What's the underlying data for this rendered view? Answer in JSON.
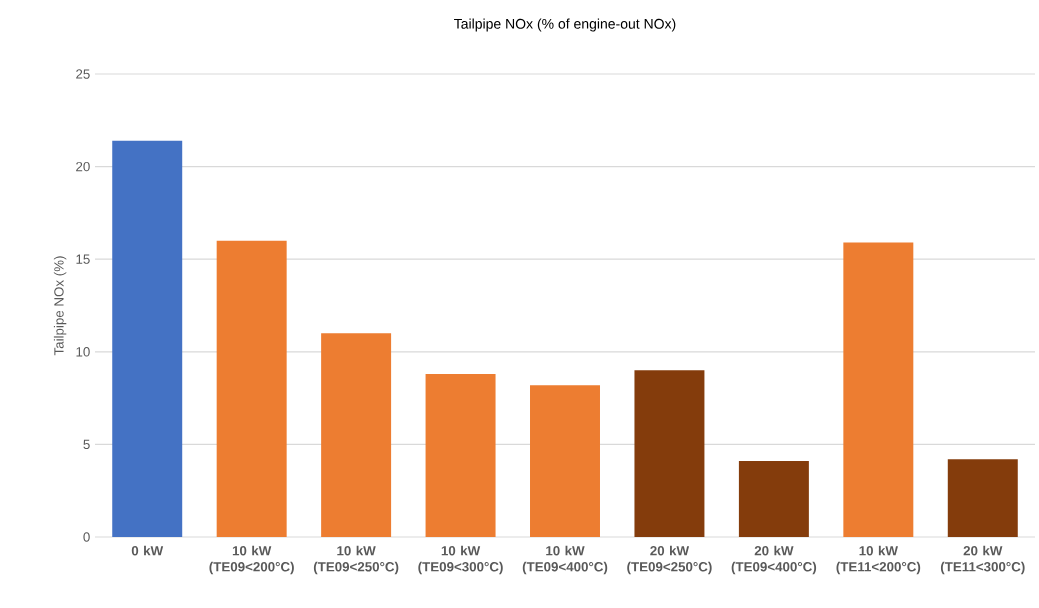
{
  "chart_data": {
    "type": "bar",
    "title": "Tailpipe NOx (% of engine-out NOx)",
    "ylabel": "Tailpipe NOx (%)",
    "categories": [
      "0 kW",
      "10 kW (TE09<200°C)",
      "10 kW (TE09<250°C)",
      "10 kW (TE09<300°C)",
      "10 kW (TE09<400°C)",
      "20 kW (TE09<250°C)",
      "20 kW (TE09<400°C)",
      "10 kW (TE11<200°C)",
      "20 kW (TE11<300°C)"
    ],
    "values": [
      21.4,
      16.0,
      11.0,
      8.8,
      8.2,
      9.0,
      4.1,
      15.9,
      4.2
    ],
    "colors": [
      "#4472c4",
      "#ed7d31",
      "#ed7d31",
      "#ed7d31",
      "#ed7d31",
      "#843c0c",
      "#843c0c",
      "#ed7d31",
      "#843c0c"
    ],
    "ylim": [
      0,
      25
    ],
    "yticks": [
      0,
      5,
      10,
      15,
      20,
      25
    ],
    "grid": "y"
  }
}
